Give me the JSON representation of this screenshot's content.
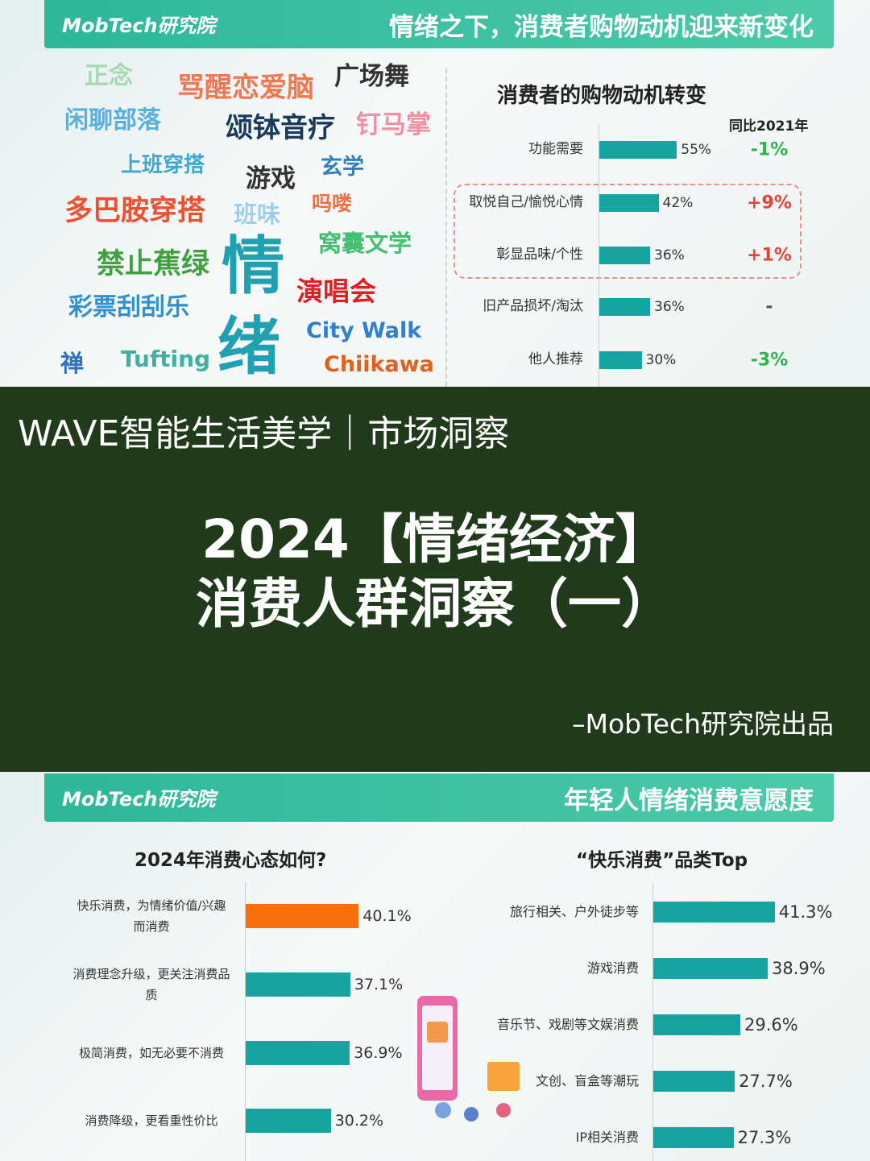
{
  "slide1": {
    "logo": "MobTech研究院",
    "title": "情绪之下，消费者购物动机迎来新变化",
    "word_cloud": [
      "正念",
      "骂醒恋爱脑",
      "广场舞",
      "闲聊部落",
      "颂钵音疗",
      "钉马掌",
      "上班穿搭",
      "游戏",
      "玄学",
      "多巴胺穿搭",
      "班味",
      "吗喽",
      "禁止蕉绿",
      "情",
      "窝囊文学",
      "演唱会",
      "彩票刮刮乐",
      "绪",
      "City Walk",
      "禅",
      "Tufting",
      "Chiikawa"
    ]
  },
  "banner": {
    "series_name": "WAVE智能生活美学｜市场洞察",
    "title_lines": [
      "2024【情绪经济】",
      "消费人群洞察（一）"
    ],
    "credit": "–MobTech研究院出品"
  },
  "slide2": {
    "logo": "MobTech研究院",
    "title": "年轻人情绪消费意愿度"
  },
  "chart_data": [
    {
      "type": "bar",
      "orientation": "horizontal",
      "title": "消费者的购物动机转变",
      "categories": [
        "功能需要",
        "取悦自己/愉悦心情",
        "彰显品味/个性",
        "旧产品损坏/淘汰",
        "他人推荐"
      ],
      "values": [
        55,
        42,
        36,
        36,
        30
      ],
      "value_labels": [
        "55%",
        "42%",
        "36%",
        "36%",
        "30%"
      ],
      "color": "#17a3a0",
      "yoy_title": "同比2021年",
      "yoy_labels": [
        "-1%",
        "+9%",
        "+1%",
        "-",
        "-3%"
      ],
      "yoy_colors": [
        "#2bb54a",
        "#e8413a",
        "#e8413a",
        "#555555",
        "#2bb54a"
      ]
    },
    {
      "type": "bar",
      "orientation": "horizontal",
      "title": "2024年消费心态如何?",
      "categories": [
        "快乐消费，为情绪价值/兴趣而消费",
        "消费理念升级，更关注消费品质",
        "极简消费，如无必要不消费",
        "消费降级，更看重性价比"
      ],
      "values": [
        40.1,
        37.1,
        36.9,
        30.2
      ],
      "value_labels": [
        "40.1%",
        "37.1%",
        "36.9%",
        "30.2%"
      ],
      "colors": [
        "#f7700f",
        "#17a3a0",
        "#17a3a0",
        "#17a3a0"
      ]
    },
    {
      "type": "bar",
      "orientation": "horizontal",
      "title": "“快乐消费”品类Top",
      "categories": [
        "旅行相关、户外徒步等",
        "游戏消费",
        "音乐节、戏剧等文娱消费",
        "文创、盲盒等潮玩",
        "IP相关消费"
      ],
      "values": [
        41.3,
        38.9,
        29.6,
        27.7,
        27.3
      ],
      "value_labels": [
        "41.3%",
        "38.9%",
        "29.6%",
        "27.7%",
        "27.3%"
      ],
      "color": "#17a3a0"
    }
  ]
}
